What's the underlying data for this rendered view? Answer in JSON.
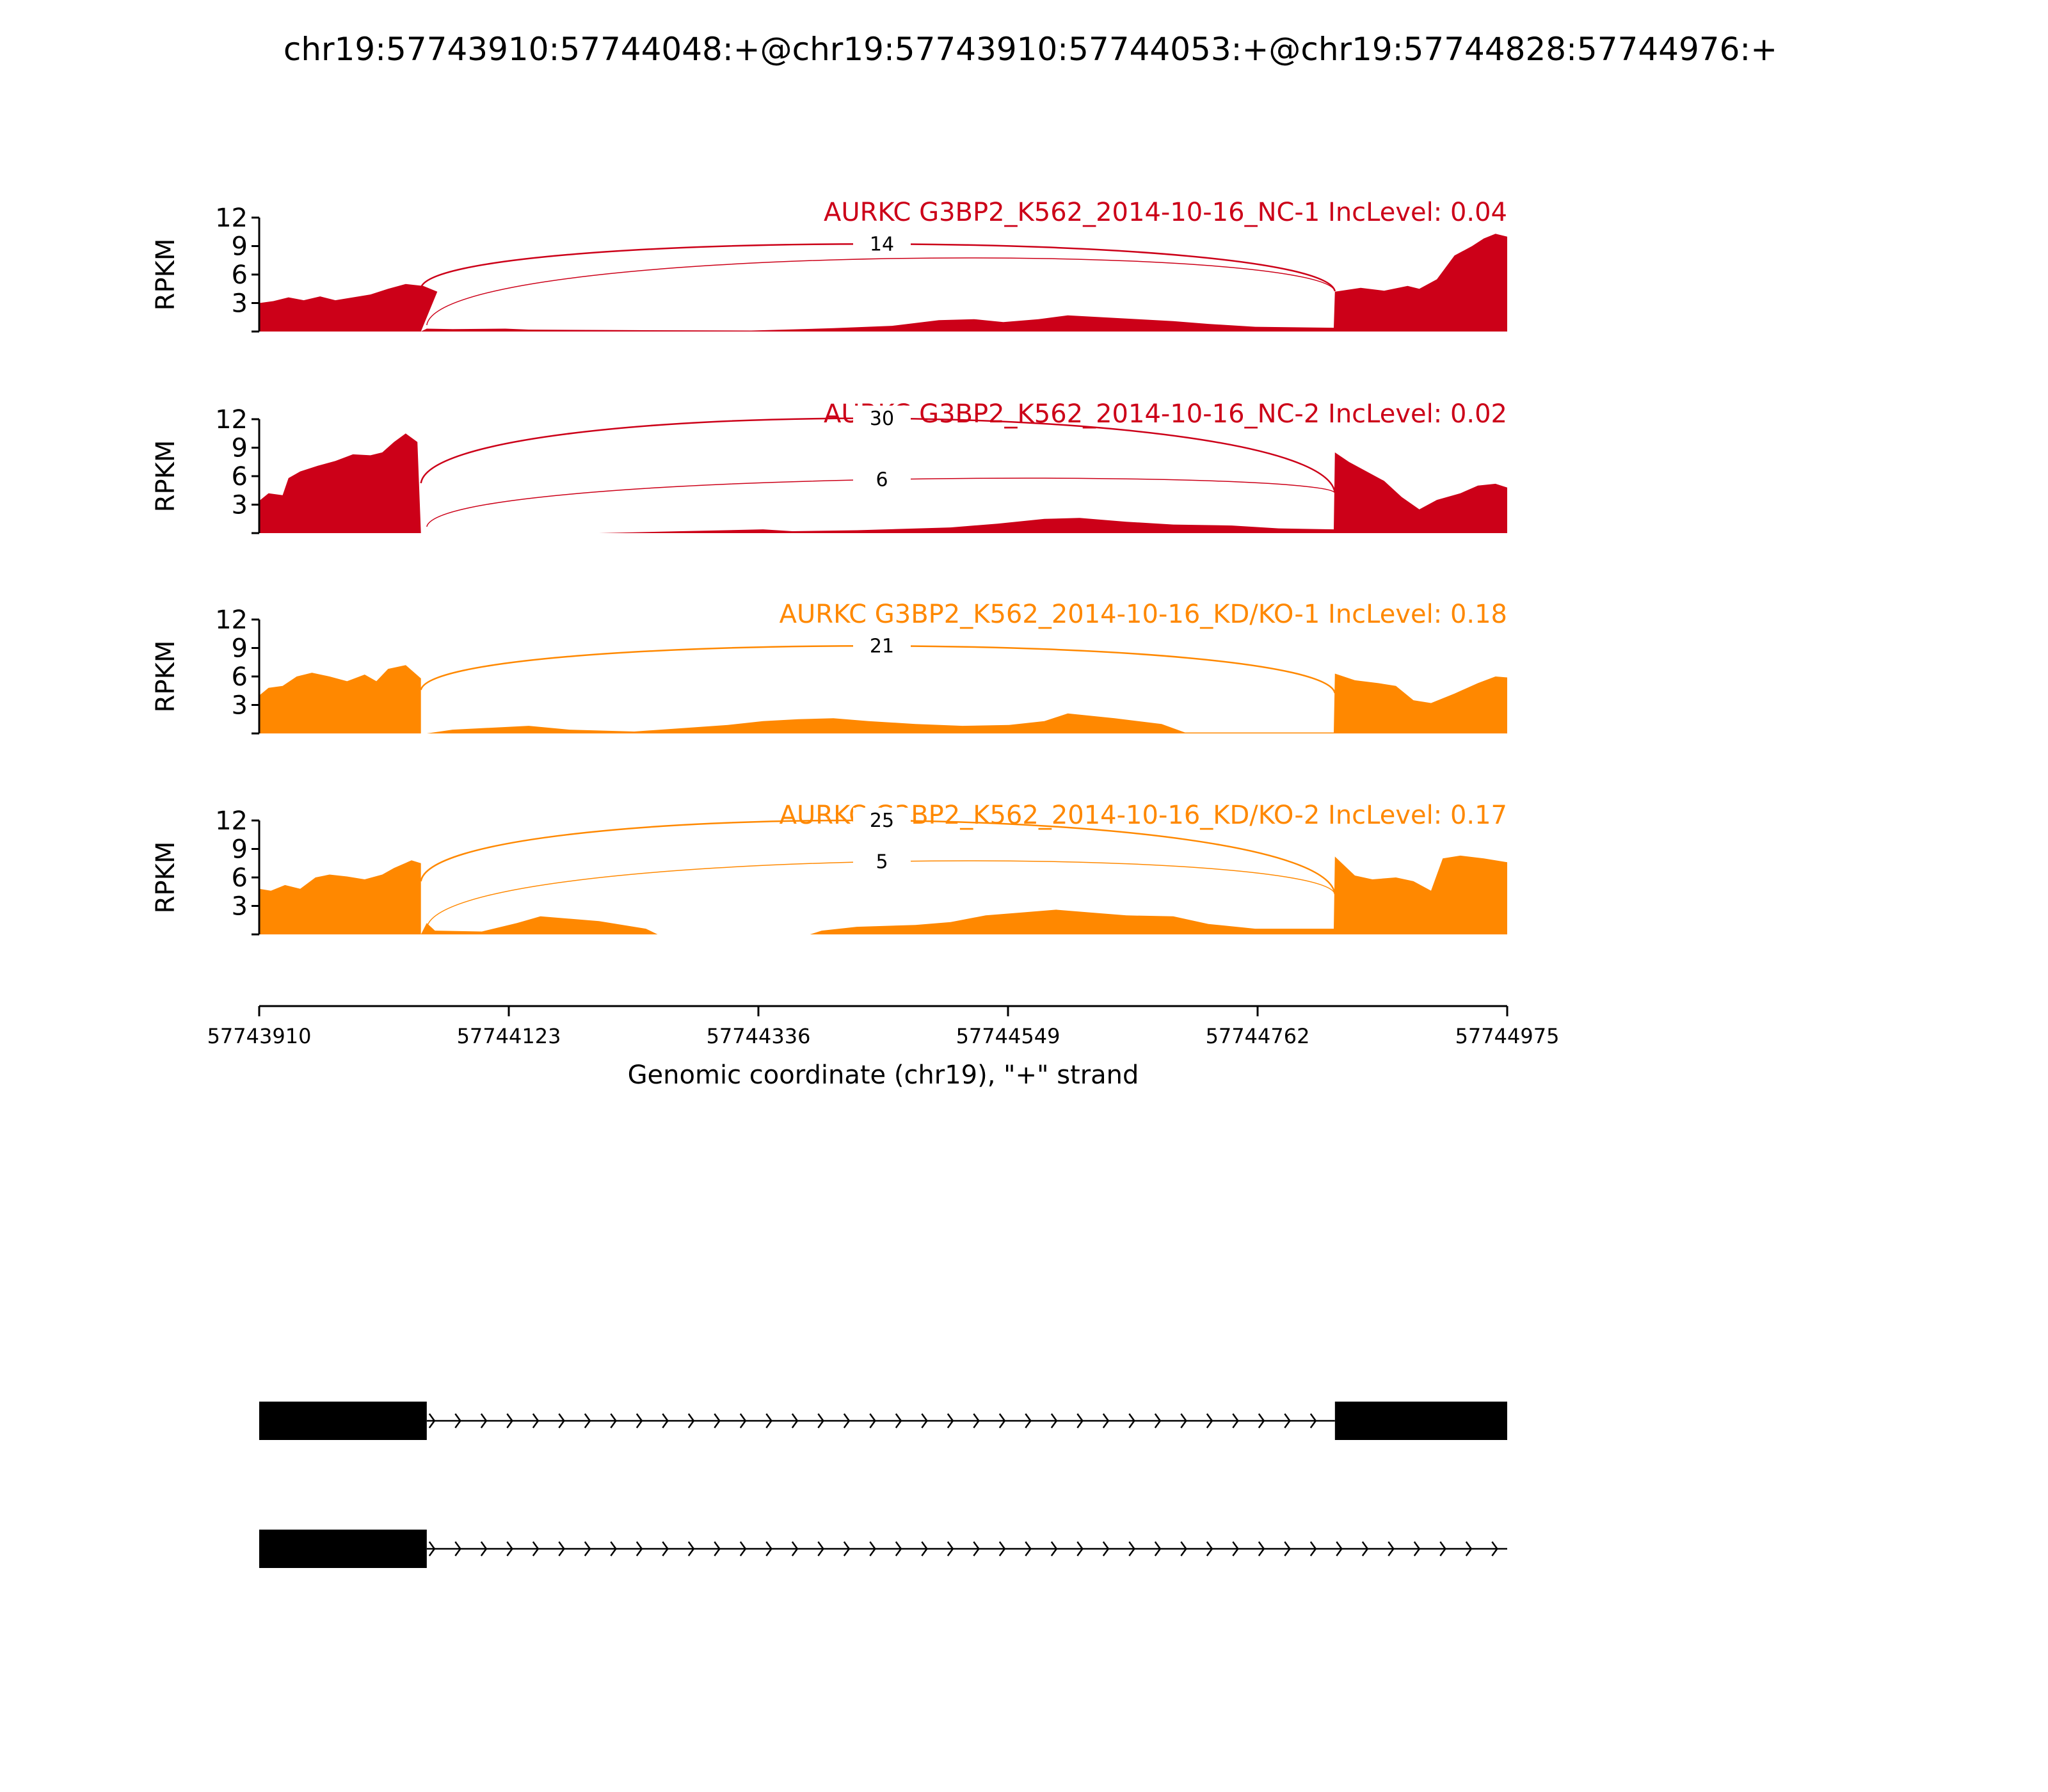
{
  "figure_title": "chr19:57743910:57744048:+@chr19:57743910:57744053:+@chr19:57744828:57744976:+",
  "colors": {
    "nc": "#cc0018",
    "kd": "#ff8800",
    "axis": "#000000",
    "gene": "#000000"
  },
  "chart_data": {
    "type": "area",
    "title": "chr19:57743910:57744048:+@chr19:57743910:57744053:+@chr19:57744828:57744976:+",
    "xlabel": "Genomic coordinate (chr19), \"+\" strand",
    "ylabel": "RPKM",
    "xlim": [
      57743910,
      57744975
    ],
    "x_ticks": [
      57743910,
      57744123,
      57744336,
      57744549,
      57744762,
      57744975
    ],
    "ylim": [
      0,
      12
    ],
    "y_ticks": [
      3,
      6,
      9,
      12
    ],
    "tracks": [
      {
        "label": "AURKC G3BP2_K562_2014-10-16_NC-1 IncLevel: 0.04",
        "group": "nc",
        "coverage": [
          [
            57743910,
            3.0
          ],
          [
            57743922,
            3.2
          ],
          [
            57743935,
            3.6
          ],
          [
            57743948,
            3.3
          ],
          [
            57743962,
            3.7
          ],
          [
            57743975,
            3.3
          ],
          [
            57743990,
            3.6
          ],
          [
            57744005,
            3.9
          ],
          [
            57744020,
            4.5
          ],
          [
            57744035,
            5.0
          ],
          [
            57744050,
            4.8
          ],
          [
            57744062,
            4.2
          ],
          [
            57744048,
            0
          ],
          [
            57744053,
            0.3
          ],
          [
            57744075,
            0.25
          ],
          [
            57744120,
            0.3
          ],
          [
            57744140,
            0.2
          ],
          [
            57744220,
            0.15
          ],
          [
            57744330,
            0.1
          ],
          [
            57744400,
            0.35
          ],
          [
            57744450,
            0.6
          ],
          [
            57744490,
            1.2
          ],
          [
            57744520,
            1.3
          ],
          [
            57744545,
            1.0
          ],
          [
            57744575,
            1.3
          ],
          [
            57744600,
            1.7
          ],
          [
            57744630,
            1.5
          ],
          [
            57744660,
            1.3
          ],
          [
            57744690,
            1.1
          ],
          [
            57744720,
            0.8
          ],
          [
            57744760,
            0.5
          ],
          [
            57744827,
            0.4
          ],
          [
            57744828,
            4.2
          ],
          [
            57744850,
            4.6
          ],
          [
            57744870,
            4.3
          ],
          [
            57744890,
            4.8
          ],
          [
            57744900,
            4.5
          ],
          [
            57744915,
            5.5
          ],
          [
            57744930,
            8.0
          ],
          [
            57744945,
            9.0
          ],
          [
            57744955,
            9.8
          ],
          [
            57744965,
            10.3
          ],
          [
            57744975,
            10.0
          ]
        ],
        "junctions": [
          {
            "count": "14",
            "start": 57744048,
            "end": 57744828
          },
          {
            "count": "",
            "start": 57744053,
            "end": 57744828
          }
        ]
      },
      {
        "label": "AURKC G3BP2_K562_2014-10-16_NC-2 IncLevel: 0.02",
        "group": "nc",
        "coverage": [
          [
            57743910,
            3.4
          ],
          [
            57743918,
            4.2
          ],
          [
            57743930,
            4.0
          ],
          [
            57743935,
            5.8
          ],
          [
            57743945,
            6.5
          ],
          [
            57743960,
            7.1
          ],
          [
            57743975,
            7.6
          ],
          [
            57743990,
            8.3
          ],
          [
            57744005,
            8.2
          ],
          [
            57744015,
            8.5
          ],
          [
            57744025,
            9.6
          ],
          [
            57744035,
            10.5
          ],
          [
            57744045,
            9.6
          ],
          [
            57744048,
            0
          ],
          [
            57744053,
            0
          ],
          [
            57744200,
            0
          ],
          [
            57744270,
            0.2
          ],
          [
            57744340,
            0.4
          ],
          [
            57744365,
            0.2
          ],
          [
            57744420,
            0.3
          ],
          [
            57744500,
            0.6
          ],
          [
            57744540,
            1.0
          ],
          [
            57744580,
            1.5
          ],
          [
            57744610,
            1.6
          ],
          [
            57744650,
            1.2
          ],
          [
            57744690,
            0.9
          ],
          [
            57744740,
            0.8
          ],
          [
            57744780,
            0.5
          ],
          [
            57744827,
            0.4
          ],
          [
            57744828,
            8.5
          ],
          [
            57744840,
            7.5
          ],
          [
            57744855,
            6.5
          ],
          [
            57744870,
            5.5
          ],
          [
            57744885,
            3.8
          ],
          [
            57744900,
            2.5
          ],
          [
            57744915,
            3.5
          ],
          [
            57744935,
            4.2
          ],
          [
            57744950,
            5.0
          ],
          [
            57744965,
            5.2
          ],
          [
            57744975,
            4.8
          ]
        ],
        "junctions": [
          {
            "count": "30",
            "start": 57744048,
            "end": 57744828
          },
          {
            "count": "6",
            "start": 57744053,
            "end": 57744828
          }
        ]
      },
      {
        "label": "AURKC G3BP2_K562_2014-10-16_KD/KO-1 IncLevel: 0.18",
        "group": "kd",
        "coverage": [
          [
            57743910,
            4.0
          ],
          [
            57743918,
            4.8
          ],
          [
            57743930,
            5.0
          ],
          [
            57743942,
            6.0
          ],
          [
            57743955,
            6.4
          ],
          [
            57743970,
            6.0
          ],
          [
            57743985,
            5.5
          ],
          [
            57744000,
            6.2
          ],
          [
            57744010,
            5.5
          ],
          [
            57744020,
            6.8
          ],
          [
            57744035,
            7.2
          ],
          [
            57744048,
            5.8
          ],
          [
            57744048,
            0
          ],
          [
            57744053,
            0
          ],
          [
            57744075,
            0.4
          ],
          [
            57744140,
            0.8
          ],
          [
            57744175,
            0.4
          ],
          [
            57744230,
            0.2
          ],
          [
            57744310,
            0.9
          ],
          [
            57744340,
            1.3
          ],
          [
            57744370,
            1.5
          ],
          [
            57744400,
            1.6
          ],
          [
            57744430,
            1.3
          ],
          [
            57744470,
            1.0
          ],
          [
            57744510,
            0.8
          ],
          [
            57744550,
            0.9
          ],
          [
            57744580,
            1.3
          ],
          [
            57744600,
            2.1
          ],
          [
            57744640,
            1.6
          ],
          [
            57744680,
            1.0
          ],
          [
            57744700,
            0.1
          ],
          [
            57744827,
            0.1
          ],
          [
            57744828,
            6.3
          ],
          [
            57744845,
            5.6
          ],
          [
            57744865,
            5.3
          ],
          [
            57744880,
            5.0
          ],
          [
            57744895,
            3.5
          ],
          [
            57744910,
            3.2
          ],
          [
            57744930,
            4.2
          ],
          [
            57744950,
            5.3
          ],
          [
            57744965,
            6.0
          ],
          [
            57744975,
            5.9
          ]
        ],
        "junctions": [
          {
            "count": "21",
            "start": 57744048,
            "end": 57744828
          }
        ]
      },
      {
        "label": "AURKC G3BP2_K562_2014-10-16_KD/KO-2 IncLevel: 0.17",
        "group": "kd",
        "coverage": [
          [
            57743910,
            4.8
          ],
          [
            57743920,
            4.6
          ],
          [
            57743932,
            5.2
          ],
          [
            57743945,
            4.8
          ],
          [
            57743958,
            6.0
          ],
          [
            57743970,
            6.3
          ],
          [
            57743985,
            6.1
          ],
          [
            57744000,
            5.8
          ],
          [
            57744015,
            6.3
          ],
          [
            57744025,
            7.0
          ],
          [
            57744040,
            7.8
          ],
          [
            57744048,
            7.5
          ],
          [
            57744048,
            0
          ],
          [
            57744053,
            1.2
          ],
          [
            57744060,
            0.4
          ],
          [
            57744100,
            0.3
          ],
          [
            57744130,
            1.2
          ],
          [
            57744150,
            1.9
          ],
          [
            57744200,
            1.4
          ],
          [
            57744240,
            0.6
          ],
          [
            57744250,
            0
          ],
          [
            57744380,
            0
          ],
          [
            57744390,
            0.4
          ],
          [
            57744420,
            0.8
          ],
          [
            57744470,
            1.0
          ],
          [
            57744500,
            1.3
          ],
          [
            57744530,
            2.0
          ],
          [
            57744560,
            2.3
          ],
          [
            57744590,
            2.6
          ],
          [
            57744620,
            2.3
          ],
          [
            57744650,
            2.0
          ],
          [
            57744690,
            1.9
          ],
          [
            57744720,
            1.1
          ],
          [
            57744760,
            0.6
          ],
          [
            57744827,
            0.6
          ],
          [
            57744828,
            8.2
          ],
          [
            57744845,
            6.2
          ],
          [
            57744860,
            5.8
          ],
          [
            57744880,
            6.0
          ],
          [
            57744895,
            5.6
          ],
          [
            57744910,
            4.6
          ],
          [
            57744920,
            8.0
          ],
          [
            57744935,
            8.3
          ],
          [
            57744955,
            8.0
          ],
          [
            57744975,
            7.6
          ]
        ],
        "junctions": [
          {
            "count": "25",
            "start": 57744048,
            "end": 57744828
          },
          {
            "count": "5",
            "start": 57744053,
            "end": 57744828
          }
        ]
      }
    ],
    "gene_models": [
      {
        "exons": [
          [
            57743910,
            57744053
          ],
          [
            57744828,
            57744975
          ]
        ],
        "line": [
          57744053,
          57744828
        ]
      },
      {
        "exons": [
          [
            57743910,
            57744053
          ]
        ],
        "line": [
          57744053,
          57744975
        ]
      }
    ]
  }
}
